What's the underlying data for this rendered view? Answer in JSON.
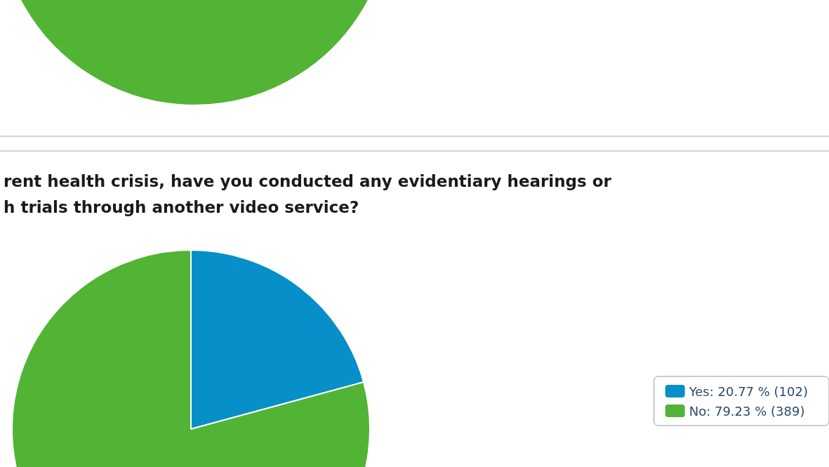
{
  "chart_data": [
    {
      "type": "pie",
      "categories": [
        null
      ],
      "values": [
        100
      ],
      "colors": [
        "#52b434"
      ]
    },
    {
      "type": "pie",
      "title": "rent health crisis, have you conducted any evidentiary hearings or\nh trials through another video service?",
      "categories": [
        "Yes",
        "No"
      ],
      "values": [
        102,
        389
      ],
      "value_labels": [
        "20.77 % (102)",
        "79.23 % (389)"
      ],
      "colors": [
        "#068fc9",
        "#52b434"
      ],
      "legend": "right"
    }
  ]
}
